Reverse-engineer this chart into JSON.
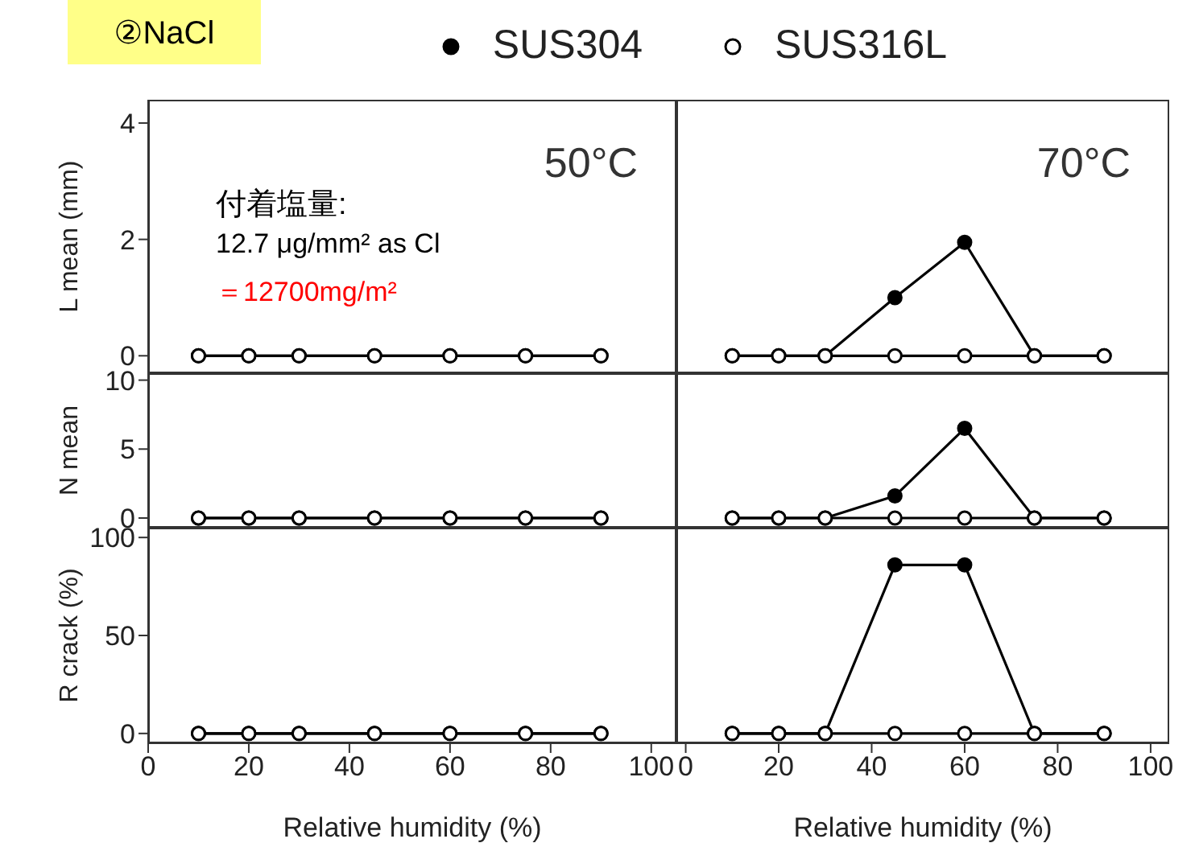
{
  "chart_data": [
    {
      "type": "line",
      "title": "②NaCl",
      "legend": "top",
      "marker": "circle",
      "ylabel": "L mean (mm)",
      "x": [
        10,
        20,
        30,
        45,
        60,
        75,
        90
      ],
      "xlim": [
        0,
        105
      ],
      "xticks": [
        0,
        20,
        40,
        60,
        80,
        100
      ],
      "ylim": [
        -0.3,
        4.4
      ],
      "yticks": [
        0,
        2,
        4
      ],
      "tick_labels": "y",
      "annotations": [
        "50°C",
        "付着塩量:",
        "12.7 μg/mm² as Cl",
        "＝12700mg/m²"
      ],
      "series": [
        {
          "name": "SUS304",
          "color": "#000000",
          "values": [
            0,
            0,
            0,
            0,
            0,
            0,
            0
          ]
        },
        {
          "name": "SUS316L",
          "color": "#000000",
          "values": [
            0,
            0,
            0,
            0,
            0,
            0,
            0
          ]
        }
      ]
    },
    {
      "type": "line",
      "marker": "circle",
      "x": [
        10,
        20,
        30,
        45,
        60,
        75,
        90
      ],
      "xticks": [
        0,
        20,
        40,
        60,
        80,
        100
      ],
      "ylim": [
        -0.3,
        4.4
      ],
      "yticks": [
        0,
        2,
        4
      ],
      "tick_labels": false,
      "annotations": [
        "70°C"
      ],
      "xlim": [
        -2,
        104
      ],
      "series": [
        {
          "color": "#000000",
          "values": [
            0,
            0,
            0,
            1.0,
            1.95,
            0,
            0
          ]
        },
        {
          "color": "#000000",
          "values": [
            0,
            0,
            0,
            0,
            0,
            0,
            0
          ]
        }
      ]
    },
    {
      "type": "line",
      "marker": "circle",
      "ylabel": "N mean",
      "x": [
        10,
        20,
        30,
        45,
        60,
        75,
        90
      ],
      "xlim": [
        0,
        105
      ],
      "xticks": [
        0,
        20,
        40,
        60,
        80,
        100
      ],
      "ylim": [
        -0.7,
        10.5
      ],
      "yticks": [
        0,
        5,
        10
      ],
      "tick_labels": "y",
      "series": [
        {
          "color": "#000000",
          "values": [
            0,
            0,
            0,
            0,
            0,
            0,
            0
          ]
        },
        {
          "color": "#000000",
          "values": [
            0,
            0,
            0,
            0,
            0,
            0,
            0
          ]
        }
      ]
    },
    {
      "type": "line",
      "marker": "circle",
      "x": [
        10,
        20,
        30,
        45,
        60,
        75,
        90
      ],
      "xlim": [
        -2,
        104
      ],
      "xticks": [
        0,
        20,
        40,
        60,
        80,
        100
      ],
      "ylim": [
        -0.7,
        10.5
      ],
      "yticks": [
        0,
        5,
        10
      ],
      "tick_labels": false,
      "series": [
        {
          "color": "#000000",
          "values": [
            0,
            0,
            0,
            1.6,
            6.5,
            0,
            0
          ]
        },
        {
          "color": "#000000",
          "values": [
            0,
            0,
            0,
            0,
            0,
            0,
            0
          ]
        }
      ]
    },
    {
      "type": "line",
      "marker": "circle",
      "ylabel": "R crack (%)",
      "xlabel": "Relative humidity (%)",
      "x": [
        10,
        20,
        30,
        45,
        60,
        75,
        90
      ],
      "xlim": [
        0,
        105
      ],
      "xticks": [
        0,
        20,
        40,
        60,
        80,
        100
      ],
      "ylim": [
        -5,
        105
      ],
      "yticks": [
        0,
        50,
        100
      ],
      "series": [
        {
          "color": "#000000",
          "values": [
            0,
            0,
            0,
            0,
            0,
            0,
            0
          ]
        },
        {
          "color": "#000000",
          "values": [
            0,
            0,
            0,
            0,
            0,
            0,
            0
          ]
        }
      ]
    },
    {
      "type": "line",
      "marker": "circle",
      "xlabel": "Relative humidity (%)",
      "x": [
        10,
        20,
        30,
        45,
        60,
        75,
        90
      ],
      "xlim": [
        -2,
        104
      ],
      "xticks": [
        0,
        20,
        40,
        60,
        80,
        100
      ],
      "ylim": [
        -5,
        105
      ],
      "yticks": [
        0,
        50,
        100
      ],
      "tick_labels": "x",
      "series": [
        {
          "color": "#000000",
          "values": [
            0,
            0,
            0,
            86,
            86,
            0,
            0
          ]
        },
        {
          "color": "#000000",
          "values": [
            0,
            0,
            0,
            0,
            0,
            0,
            0
          ]
        }
      ]
    }
  ]
}
